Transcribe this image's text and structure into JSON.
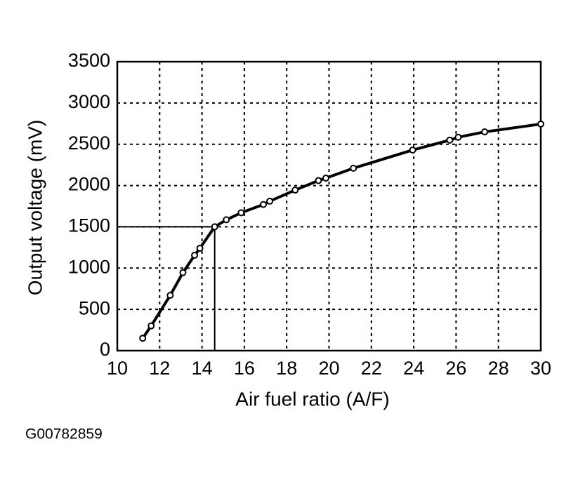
{
  "chart_data": {
    "type": "line",
    "x_label": "Air fuel ratio (A/F)",
    "y_label": "Output voltage (mV)",
    "figure_id": "G00782859",
    "xlim": [
      10,
      30
    ],
    "ylim": [
      0,
      3500
    ],
    "xticks": [
      10,
      12,
      14,
      16,
      18,
      20,
      22,
      24,
      26,
      28,
      30
    ],
    "yticks": [
      0,
      500,
      1000,
      1500,
      2000,
      2500,
      3000,
      3500
    ],
    "grid": true,
    "reference": {
      "x": 14.6,
      "y": 1500
    },
    "series": [
      {
        "color": "#000000",
        "x": [
          11.2,
          11.6,
          12.5,
          13.1,
          13.65,
          13.9,
          14.6,
          15.15,
          15.85,
          16.9,
          17.2,
          18.4,
          19.5,
          19.85,
          21.15,
          23.95,
          25.7,
          26.1,
          27.35,
          30
        ],
        "values": [
          150,
          300,
          670,
          945,
          1155,
          1240,
          1500,
          1585,
          1670,
          1770,
          1810,
          1945,
          2060,
          2090,
          2210,
          2430,
          2550,
          2585,
          2650,
          2745
        ]
      }
    ]
  }
}
